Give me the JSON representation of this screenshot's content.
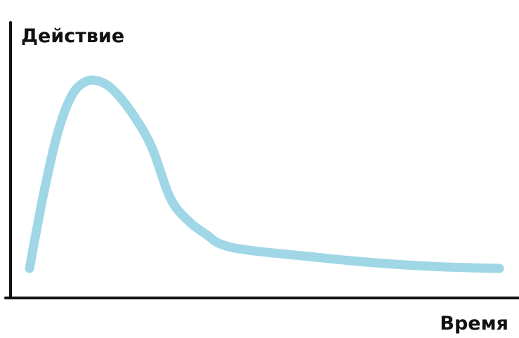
{
  "chart_data": {
    "type": "line",
    "title": "",
    "xlabel": "Время",
    "ylabel": "Действие",
    "grid": false,
    "legend": "none",
    "xlim": [
      0,
      100
    ],
    "ylim": [
      0,
      100
    ],
    "series": [
      {
        "color": "#9fd7e6",
        "x": [
          0,
          3,
          6,
          9,
          12,
          15,
          18,
          22,
          26,
          30,
          34,
          38,
          40,
          43,
          46,
          50,
          55,
          60,
          70,
          80,
          90,
          100
        ],
        "y": [
          10,
          42,
          68,
          84,
          90,
          90,
          86,
          76,
          62,
          40,
          30,
          24,
          21,
          19,
          18,
          17,
          16,
          15,
          13,
          11.5,
          10.5,
          10
        ]
      }
    ],
    "axis_color": "#111111"
  }
}
